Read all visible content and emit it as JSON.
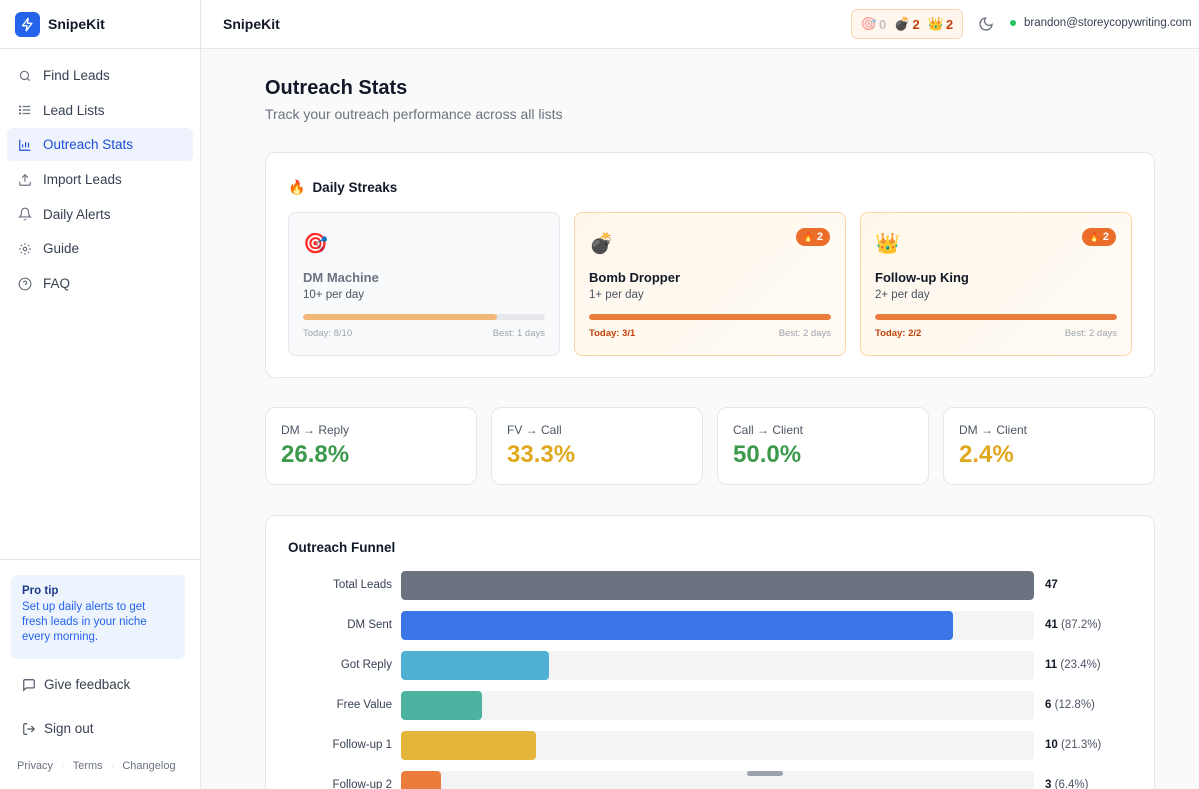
{
  "app": {
    "name": "SnipeKit",
    "accent": "#2563eb"
  },
  "sidebar": {
    "items": [
      {
        "label": "Find Leads",
        "icon": "search-icon"
      },
      {
        "label": "Lead Lists",
        "icon": "list-icon"
      },
      {
        "label": "Outreach Stats",
        "icon": "bar-chart-icon",
        "active": true
      },
      {
        "label": "Import Leads",
        "icon": "upload-icon"
      },
      {
        "label": "Daily Alerts",
        "icon": "bell-icon"
      },
      {
        "label": "Guide",
        "icon": "gear-icon"
      },
      {
        "label": "FAQ",
        "icon": "help-circle-icon"
      }
    ],
    "pro_tip": {
      "title": "Pro tip",
      "text": "Set up daily alerts to get fresh leads in your niche every morning."
    },
    "feedback_label": "Give feedback",
    "signout_label": "Sign out",
    "footer": {
      "privacy": "Privacy",
      "terms": "Terms",
      "changelog": "Changelog",
      "separator": "·"
    }
  },
  "topbar": {
    "title": "SnipeKit",
    "streak_counts": {
      "dm": "0",
      "bomb": "2",
      "crown": "2"
    },
    "user_email": "brandon@storeycopywriting.com"
  },
  "main": {
    "title": "Outreach Stats",
    "subtitle": "Track your outreach performance across all lists"
  },
  "streaks": {
    "heading": "Daily Streaks",
    "heading_emoji": "🔥",
    "badge_emoji": "🔥",
    "items": [
      {
        "emoji": "🎯",
        "name": "DM Machine",
        "target": "10+ per day",
        "today": "Today: 8/10",
        "best": "Best: 1 days",
        "progress": 0.8,
        "badge": "",
        "active": false
      },
      {
        "emoji": "💣",
        "name": "Bomb Dropper",
        "target": "1+ per day",
        "today": "Today: 3/1",
        "best": "Best: 2 days",
        "progress": 1.0,
        "badge": "2",
        "active": true
      },
      {
        "emoji": "👑",
        "name": "Follow-up King",
        "target": "2+ per day",
        "today": "Today: 2/2",
        "best": "Best: 2 days",
        "progress": 1.0,
        "badge": "2",
        "active": true
      }
    ]
  },
  "metrics": [
    {
      "label": "DM → Reply",
      "value": "26.8%",
      "color": "#3d9a4c"
    },
    {
      "label": "FV → Call",
      "value": "33.3%",
      "color": "#e0a91d"
    },
    {
      "label": "Call → Client",
      "value": "50.0%",
      "color": "#3d9a4c"
    },
    {
      "label": "DM → Client",
      "value": "2.4%",
      "color": "#e0a91d"
    }
  ],
  "funnel": {
    "title": "Outreach Funnel",
    "rows": [
      {
        "label": "Total Leads",
        "count": "47",
        "pct": "",
        "value": 47,
        "color": "#6b7280"
      },
      {
        "label": "DM Sent",
        "count": "41",
        "pct": "(87.2%)",
        "value": 41,
        "color": "#3b76e8"
      },
      {
        "label": "Got Reply",
        "count": "11",
        "pct": "(23.4%)",
        "value": 11,
        "color": "#4fb0d3"
      },
      {
        "label": "Free Value",
        "count": "6",
        "pct": "(12.8%)",
        "value": 6,
        "color": "#4db3a0"
      },
      {
        "label": "Follow-up 1",
        "count": "10",
        "pct": "(21.3%)",
        "value": 10,
        "color": "#e4b53b"
      },
      {
        "label": "Follow-up 2",
        "count": "3",
        "pct": "(6.4%)",
        "value": 3,
        "color": "#ea7d3c"
      }
    ]
  }
}
